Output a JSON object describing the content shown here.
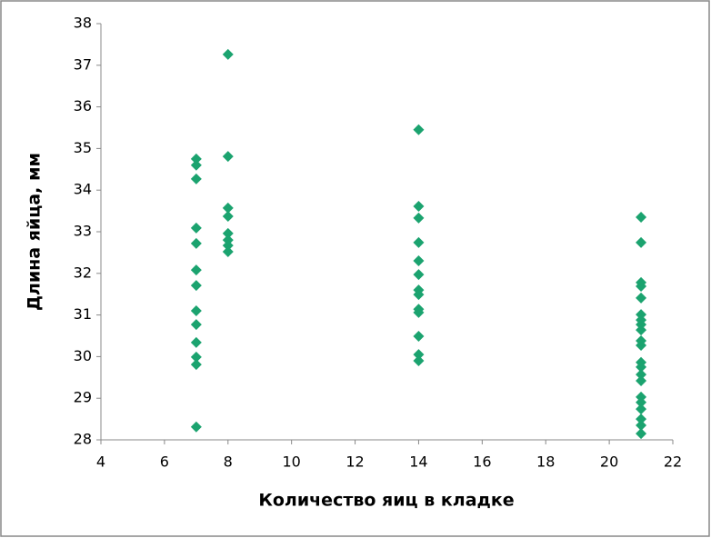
{
  "chart_data": {
    "type": "scatter",
    "xlabel": "Количество яиц в кладке",
    "ylabel": "Длина яйца, мм",
    "color": "#1ba36f",
    "xlim": [
      4,
      22
    ],
    "xticks": [
      4,
      6,
      8,
      10,
      12,
      14,
      16,
      18,
      20,
      22
    ],
    "ylim": [
      28,
      38
    ],
    "yticks": [
      28,
      29,
      30,
      31,
      32,
      33,
      34,
      35,
      36,
      37,
      38
    ],
    "x": [
      7,
      7,
      7,
      7,
      7,
      7,
      7,
      7,
      7,
      7,
      7,
      7,
      7,
      8,
      8,
      8,
      8,
      8,
      8,
      8,
      8,
      14,
      14,
      14,
      14,
      14,
      14,
      14,
      14,
      14,
      14,
      14,
      14,
      14,
      21,
      21,
      21,
      21,
      21,
      21,
      21,
      21,
      21,
      21,
      21,
      21,
      21,
      21,
      21,
      21,
      21,
      21,
      21,
      21,
      21
    ],
    "y": [
      34.75,
      34.6,
      34.27,
      33.09,
      32.72,
      32.08,
      31.71,
      31.1,
      30.77,
      30.34,
      29.99,
      29.81,
      28.31,
      37.26,
      34.81,
      33.57,
      33.37,
      32.96,
      32.8,
      32.67,
      32.52,
      35.45,
      33.61,
      33.33,
      32.74,
      32.3,
      31.97,
      31.6,
      31.49,
      31.14,
      31.06,
      30.49,
      30.05,
      29.9,
      33.35,
      32.74,
      31.78,
      31.69,
      31.41,
      31.01,
      30.88,
      30.77,
      30.64,
      30.38,
      30.27,
      29.86,
      29.75,
      29.57,
      29.42,
      29.03,
      28.9,
      28.74,
      28.5,
      28.35,
      28.15
    ]
  }
}
